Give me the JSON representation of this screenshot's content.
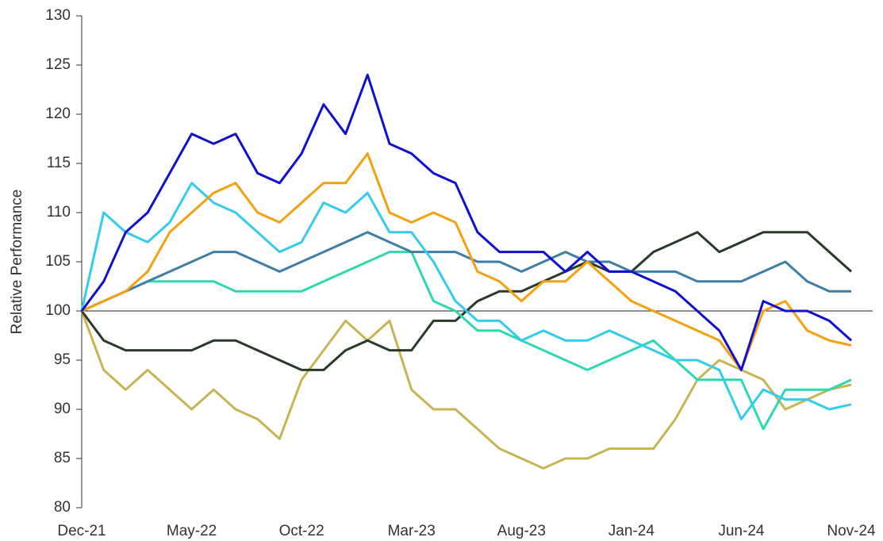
{
  "chart_data": {
    "type": "line",
    "y_label": "Relative Performance",
    "categories": [
      "Dec-21",
      null,
      null,
      null,
      null,
      "May-22",
      null,
      null,
      null,
      null,
      "Oct-22",
      null,
      null,
      null,
      null,
      "Mar-23",
      null,
      null,
      null,
      null,
      "Aug-23",
      null,
      null,
      null,
      null,
      "Jan-24",
      null,
      null,
      null,
      null,
      "Jun-24",
      null,
      null,
      null,
      null,
      "Nov-24"
    ],
    "ylim": [
      80,
      130
    ],
    "yticks": [
      80,
      85,
      90,
      95,
      100,
      105,
      110,
      115,
      120,
      125,
      130
    ],
    "hline": 100,
    "series": [
      {
        "color": "#c8b452",
        "values": [
          100,
          94,
          92,
          94,
          92,
          90,
          92,
          90,
          89,
          87,
          93,
          96,
          99,
          97,
          99,
          92,
          90,
          90,
          88,
          86,
          85,
          84,
          85,
          85,
          86,
          86,
          86,
          89,
          93,
          95,
          94,
          93,
          90,
          91,
          92,
          92.5
        ]
      },
      {
        "color": "#2a3a2a",
        "values": [
          100,
          97,
          96,
          96,
          96,
          96,
          97,
          97,
          96,
          95,
          94,
          94,
          96,
          97,
          96,
          96,
          99,
          99,
          101,
          102,
          102,
          103,
          104,
          105,
          104,
          104,
          106,
          107,
          108,
          106,
          107,
          108,
          108,
          108,
          106,
          104
        ]
      },
      {
        "color": "#2fd9b0",
        "values": [
          100,
          101,
          102,
          103,
          103,
          103,
          103,
          102,
          102,
          102,
          102,
          103,
          104,
          105,
          106,
          106,
          101,
          100,
          98,
          98,
          97,
          96,
          95,
          94,
          95,
          96,
          97,
          95,
          93,
          93,
          93,
          88,
          92,
          92,
          92,
          93
        ]
      },
      {
        "color": "#3f7ea6",
        "values": [
          100,
          101,
          102,
          103,
          104,
          105,
          106,
          106,
          105,
          104,
          105,
          106,
          107,
          108,
          107,
          106,
          106,
          106,
          105,
          105,
          104,
          105,
          106,
          105,
          105,
          104,
          104,
          104,
          103,
          103,
          103,
          104,
          105,
          103,
          102,
          102
        ]
      },
      {
        "color": "#33ccee",
        "values": [
          100,
          110,
          108,
          107,
          109,
          113,
          111,
          110,
          108,
          106,
          107,
          111,
          110,
          112,
          108,
          108,
          105,
          101,
          99,
          99,
          97,
          98,
          97,
          97,
          98,
          97,
          96,
          95,
          95,
          94,
          89,
          92,
          91,
          91,
          90,
          90.5
        ]
      },
      {
        "color": "#f5a00f",
        "values": [
          100,
          101,
          102,
          104,
          108,
          110,
          112,
          113,
          110,
          109,
          111,
          113,
          113,
          116,
          110,
          109,
          110,
          109,
          104,
          103,
          101,
          103,
          103,
          105,
          103,
          101,
          100,
          99,
          98,
          97,
          94,
          100,
          101,
          98,
          97,
          96.5
        ]
      },
      {
        "color": "#1010d0",
        "values": [
          100,
          103,
          108,
          110,
          114,
          118,
          117,
          118,
          114,
          113,
          116,
          121,
          118,
          124,
          117,
          116,
          114,
          113,
          108,
          106,
          106,
          106,
          104,
          106,
          104,
          104,
          103,
          102,
          100,
          98,
          94,
          101,
          100,
          100,
          99,
          97
        ]
      }
    ]
  }
}
